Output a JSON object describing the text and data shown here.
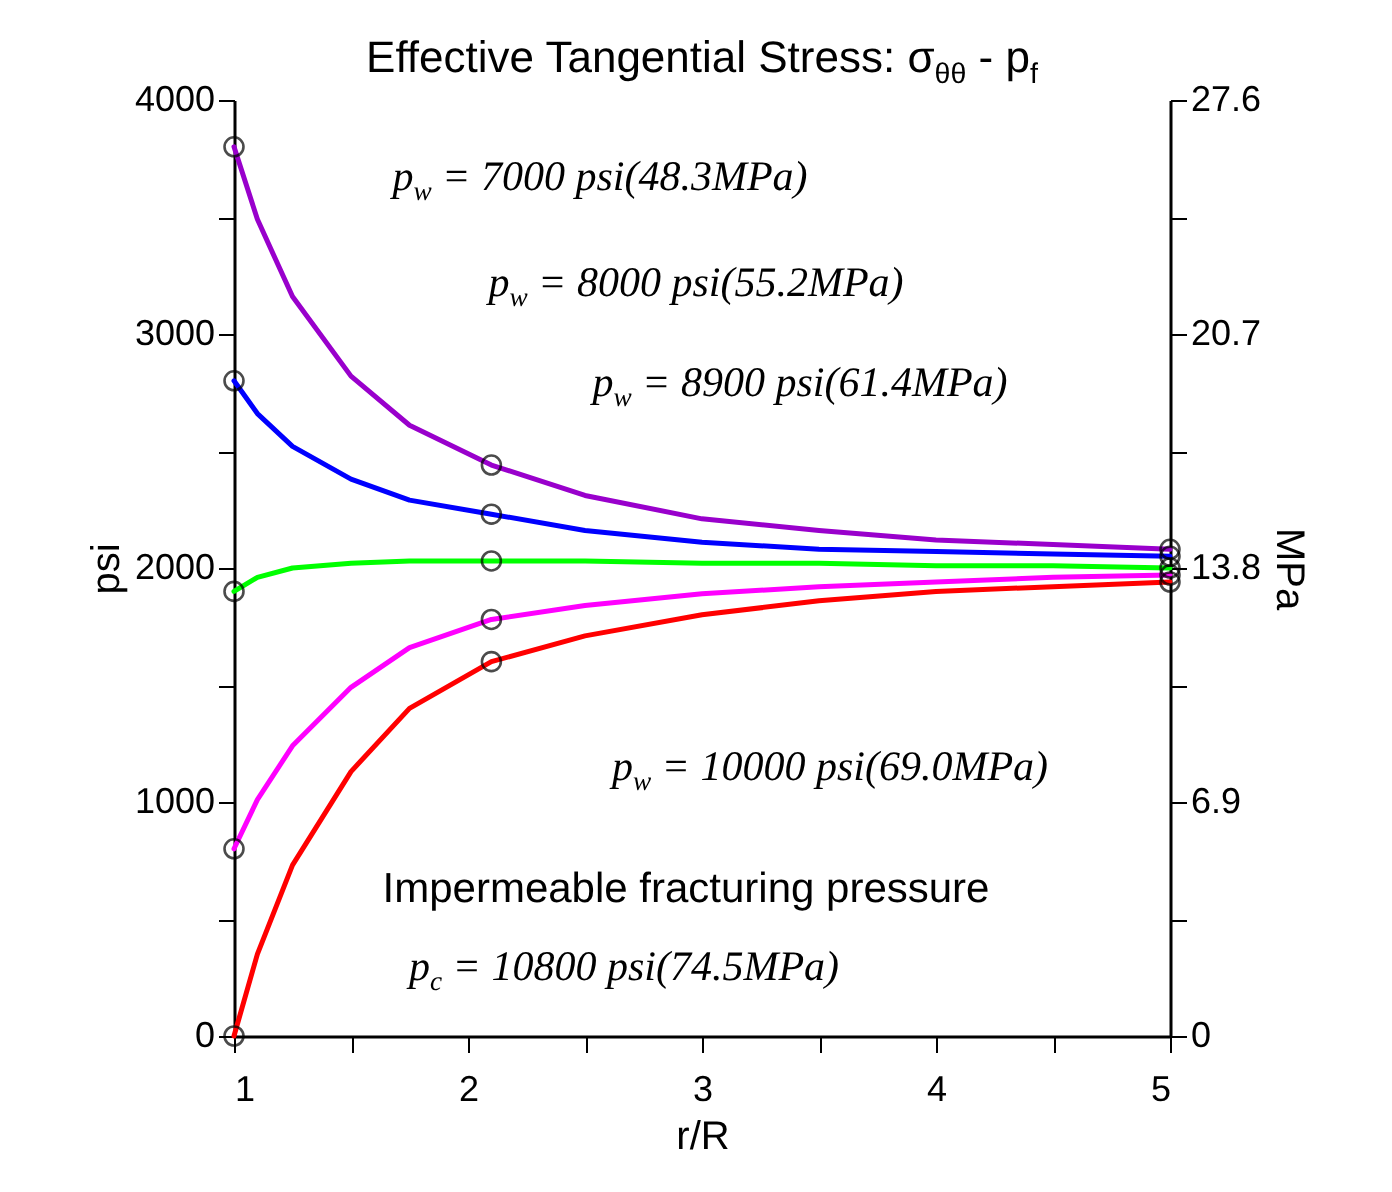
{
  "chart_data": {
    "type": "line",
    "title": "Effective Tangential Stress:  σ$_{θθ}$ - p$_{f}$",
    "xlabel": "r/R",
    "ylabel": "psi",
    "y2label": "MPa",
    "x": [
      1,
      1.1,
      1.25,
      1.5,
      1.75,
      2.1,
      2.5,
      3,
      3.5,
      4,
      4.5,
      5
    ],
    "series": [
      {
        "color": "#9900cc",
        "values": [
          3800,
          3490,
          3160,
          2820,
          2610,
          2440,
          2310,
          2210,
          2160,
          2120,
          2100,
          2080
        ]
      },
      {
        "color": "#0000ff",
        "values": [
          2800,
          2660,
          2520,
          2380,
          2290,
          2230,
          2160,
          2110,
          2080,
          2070,
          2060,
          2050
        ]
      },
      {
        "color": "#00ff00",
        "values": [
          1900,
          1960,
          2000,
          2020,
          2030,
          2030,
          2030,
          2020,
          2020,
          2010,
          2010,
          2000
        ]
      },
      {
        "color": "#ff00ff",
        "values": [
          800,
          1010,
          1240,
          1490,
          1660,
          1780,
          1840,
          1890,
          1920,
          1940,
          1960,
          1970
        ]
      },
      {
        "color": "#ff0000",
        "values": [
          0,
          350,
          730,
          1130,
          1400,
          1600,
          1710,
          1800,
          1860,
          1900,
          1920,
          1940
        ]
      },
      {
        "type": "scatter",
        "marker": "circle",
        "color": "#000000",
        "x": [
          1,
          2.1,
          5,
          1,
          2.1,
          5,
          1,
          2.1,
          5,
          1,
          2.1,
          5,
          1,
          2.1,
          5
        ],
        "values": [
          3800,
          2440,
          2080,
          2800,
          2230,
          2050,
          1900,
          2030,
          2000,
          800,
          1780,
          1970,
          0,
          1600,
          1940
        ]
      }
    ],
    "xlim": [
      1,
      5
    ],
    "ylim": [
      0,
      4000
    ],
    "y2lim": [
      0,
      27.6
    ],
    "xticks": [
      1,
      {
        "value": 1.5,
        "label": null
      },
      2,
      {
        "value": 2.5,
        "label": null
      },
      3,
      {
        "value": 3.5,
        "label": null
      },
      4,
      {
        "value": 4.5,
        "label": null
      },
      5
    ],
    "yticks": [
      0,
      {
        "value": 500,
        "label": null
      },
      1000,
      {
        "value": 1500,
        "label": null
      },
      2000,
      {
        "value": 2500,
        "label": null
      },
      3000,
      {
        "value": 3500,
        "label": null
      },
      4000
    ],
    "y2ticks": [
      0,
      {
        "value": 3.45,
        "label": null
      },
      6.9,
      {
        "value": 10.35,
        "label": null
      },
      13.8,
      {
        "value": 17.25,
        "label": null
      },
      20.7,
      {
        "value": 24.15,
        "label": null
      },
      27.6
    ],
    "annotations": [
      "p$_{w}$ = 7000 psi(48.3MPa)",
      "p$_{w}$ = 8000 psi(55.2MPa)",
      "p$_{w}$ = 8900 psi(61.4MPa)",
      "p$_{w}$ = 10000 psi(69.0MPa)",
      "Impermeable fracturing pressure",
      "p$_{c}$ = 10800 psi(74.5MPa)"
    ]
  }
}
